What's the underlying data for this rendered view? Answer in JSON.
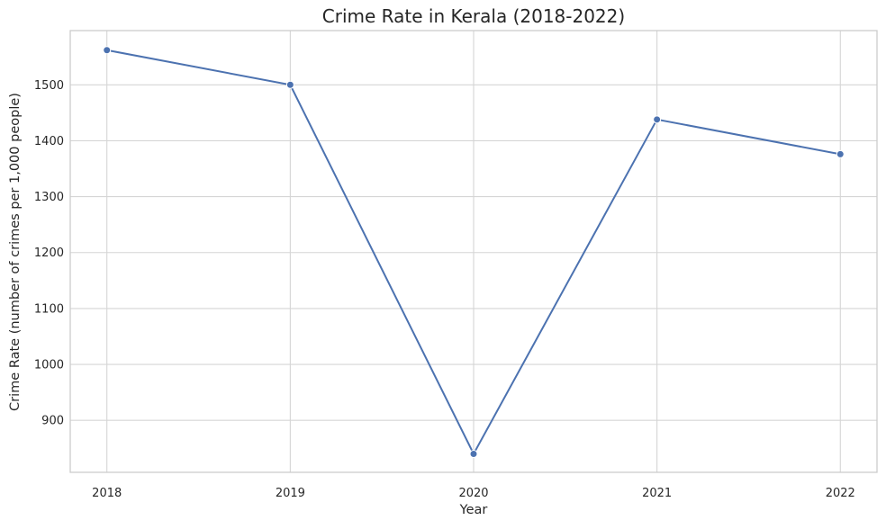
{
  "chart_data": {
    "type": "line",
    "title": "Crime Rate in Kerala (2018-2022)",
    "xlabel": "Year",
    "ylabel": "Crime Rate (number of crimes per 1,000 people)",
    "x": [
      "2018",
      "2019",
      "2020",
      "2021",
      "2022"
    ],
    "series": [
      {
        "values": [
          1562,
          1500,
          840,
          1438,
          1376
        ]
      }
    ],
    "xlim": [
      -0.2,
      4.2
    ],
    "ylim": [
      807,
      1597
    ],
    "yticks": [
      "900",
      "1000",
      "1100",
      "1200",
      "1300",
      "1400",
      "1500"
    ],
    "grid": true,
    "colors": {
      "series": "#4c72b0",
      "grid": "#d5d5d5",
      "frame": "#cccccc"
    }
  }
}
